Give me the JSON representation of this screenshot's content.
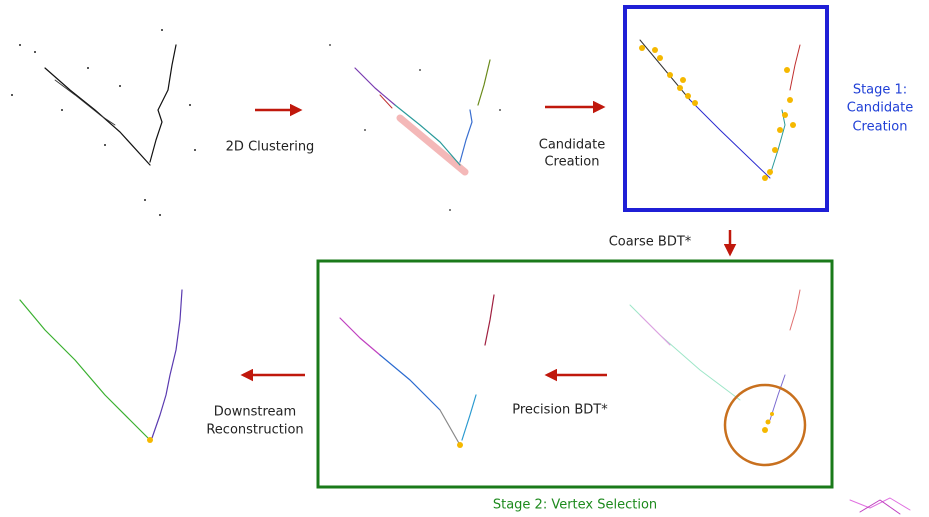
{
  "labels": {
    "clustering": "2D Clustering",
    "candidate_creation": [
      "Candidate",
      "Creation"
    ],
    "stage1": [
      "Stage 1:",
      "Candidate",
      "Creation"
    ],
    "coarse_bdt": "Coarse BDT*",
    "precision_bdt": "Precision BDT*",
    "downstream": [
      "Downstream",
      "Reconstruction"
    ],
    "stage2": "Stage 2: Vertex Selection"
  }
}
